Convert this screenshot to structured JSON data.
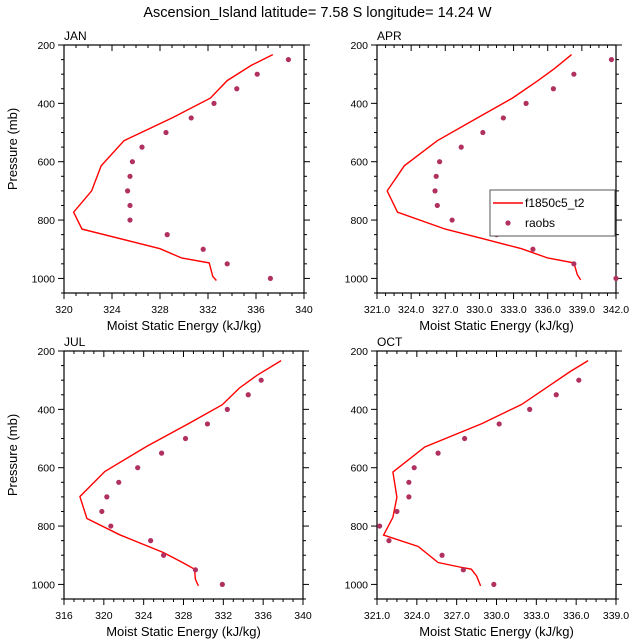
{
  "chart_data": {
    "title": "Ascension_Island  latitude= 7.58 S longitude= 14.24 W",
    "type": "line",
    "legend": {
      "placement": "inside-right (APR panel)",
      "entries": [
        {
          "name": "f1850c5_t2",
          "style": "line",
          "color": "#ff0000"
        },
        {
          "name": "raobs",
          "style": "marker",
          "color": "#b03060"
        }
      ]
    },
    "panels": [
      {
        "label": "JAN",
        "xlabel": "Moist Static Energy (kJ/kg)",
        "ylabel": "Pressure (mb)",
        "xlim": [
          320,
          340
        ],
        "xticks": [
          320,
          324,
          328,
          332,
          336,
          340
        ],
        "xtick_labels": [
          "320",
          "324",
          "328",
          "332",
          "336",
          "340"
        ],
        "ylim": [
          200,
          1050
        ],
        "yticks": [
          200,
          400,
          600,
          800,
          1000
        ],
        "ytick_labels": [
          "200",
          "400",
          "600",
          "800",
          "1000"
        ],
        "model": {
          "name": "f1850c5_t2",
          "mse": [
            337.4,
            335.6,
            333.6,
            332.2,
            329.1,
            325.0,
            323.1,
            322.3,
            320.8,
            321.5,
            328.0,
            329.8,
            332.1,
            332.4,
            332.7
          ],
          "pressure": [
            233,
            270,
            322,
            382,
            448,
            528,
            614,
            700,
            773,
            831,
            898,
            930,
            947,
            993,
            1007
          ]
        },
        "obs": {
          "name": "raobs",
          "mse": [
            338.7,
            336.1,
            334.4,
            332.5,
            330.6,
            328.5,
            326.5,
            325.7,
            325.5,
            325.3,
            325.5,
            325.5,
            328.6,
            331.6,
            333.6,
            337.2
          ],
          "pressure": [
            250,
            300,
            350,
            400,
            450,
            500,
            550,
            600,
            650,
            700,
            750,
            800,
            850,
            900,
            950,
            1000
          ]
        }
      },
      {
        "label": "APR",
        "xlabel": "Moist Static Energy (kJ/kg)",
        "ylabel": "",
        "xlim": [
          321,
          342
        ],
        "xticks": [
          321,
          324,
          327,
          330,
          333,
          336,
          339,
          342
        ],
        "xtick_labels": [
          "321.0",
          "324.0",
          "327.0",
          "330.0",
          "333.0",
          "336.0",
          "339.0",
          "342.0"
        ],
        "ylim": [
          200,
          1050
        ],
        "yticks": [
          200,
          400,
          600,
          800,
          1000
        ],
        "ytick_labels": [
          "200",
          "400",
          "600",
          "800",
          "1000"
        ],
        "model": {
          "name": "f1850c5_t2",
          "mse": [
            338.1,
            336.6,
            335.1,
            332.9,
            329.9,
            326.3,
            323.4,
            321.9,
            322.8,
            327.0,
            330.6,
            333.7,
            336.0,
            338.3,
            338.6,
            338.9
          ],
          "pressure": [
            233,
            281,
            323,
            382,
            448,
            528,
            614,
            700,
            773,
            831,
            867,
            898,
            930,
            947,
            987,
            1005
          ]
        },
        "obs": {
          "name": "raobs",
          "mse": [
            341.6,
            338.3,
            336.5,
            334.1,
            332.1,
            330.3,
            328.4,
            326.5,
            326.2,
            326.1,
            326.3,
            327.6,
            331.5,
            334.7,
            338.3,
            342.0
          ],
          "pressure": [
            250,
            300,
            350,
            400,
            450,
            500,
            550,
            600,
            650,
            700,
            750,
            800,
            850,
            900,
            950,
            1000
          ]
        }
      },
      {
        "label": "JUL",
        "xlabel": "Moist Static Energy (kJ/kg)",
        "ylabel": "Pressure (mb)",
        "xlim": [
          316,
          340
        ],
        "xticks": [
          316,
          320,
          324,
          328,
          332,
          336,
          340
        ],
        "xtick_labels": [
          "316",
          "320",
          "324",
          "328",
          "332",
          "336",
          "340"
        ],
        "ylim": [
          200,
          1050
        ],
        "yticks": [
          200,
          400,
          600,
          800,
          1000
        ],
        "ytick_labels": [
          "200",
          "400",
          "600",
          "800",
          "1000"
        ],
        "model": {
          "name": "f1850c5_t2",
          "mse": [
            337.8,
            335.4,
            333.6,
            331.9,
            328.6,
            324.3,
            320.1,
            317.6,
            318.3,
            321.6,
            326.0,
            327.9,
            329.1,
            329.2,
            329.5
          ],
          "pressure": [
            233,
            283,
            327,
            384,
            447,
            527,
            613,
            699,
            774,
            830,
            891,
            925,
            948,
            982,
            1005
          ]
        },
        "obs": {
          "name": "raobs",
          "mse": [
            335.8,
            334.5,
            332.4,
            330.4,
            328.2,
            325.8,
            323.4,
            321.5,
            320.3,
            319.8,
            320.7,
            324.7,
            326.0,
            329.2,
            331.9
          ],
          "pressure": [
            300,
            350,
            400,
            450,
            500,
            550,
            600,
            650,
            700,
            750,
            800,
            850,
            900,
            950,
            1000
          ]
        }
      },
      {
        "label": "OCT",
        "xlabel": "Moist Static Energy (kJ/kg)",
        "ylabel": "",
        "xlim": [
          321,
          339
        ],
        "xticks": [
          321,
          324,
          327,
          330,
          333,
          336,
          339
        ],
        "xtick_labels": [
          "321.0",
          "324.0",
          "327.0",
          "330.0",
          "333.0",
          "336.0",
          "339.0"
        ],
        "ylim": [
          200,
          1050
        ],
        "yticks": [
          200,
          400,
          600,
          800,
          1000
        ],
        "ytick_labels": [
          "200",
          "400",
          "600",
          "800",
          "1000"
        ],
        "model": {
          "name": "f1850c5_t2",
          "mse": [
            336.9,
            335.5,
            334.2,
            331.9,
            328.9,
            324.6,
            322.2,
            322.5,
            322.2,
            321.5,
            324.1,
            325.6,
            327.4,
            328.1,
            328.5,
            328.8
          ],
          "pressure": [
            233,
            272,
            312,
            383,
            449,
            529,
            615,
            701,
            770,
            831,
            870,
            925,
            942,
            948,
            971,
            1005
          ]
        },
        "obs": {
          "name": "raobs",
          "mse": [
            336.2,
            334.5,
            332.5,
            330.2,
            327.6,
            325.6,
            323.8,
            323.4,
            323.4,
            322.5,
            321.2,
            321.9,
            325.9,
            327.5,
            329.8
          ],
          "pressure": [
            300,
            350,
            400,
            450,
            500,
            550,
            600,
            650,
            700,
            750,
            800,
            850,
            900,
            950,
            1000
          ]
        }
      }
    ],
    "grid": false,
    "colors": {
      "model_line": "#ff0000",
      "obs_marker": "#b03060",
      "axes": "#000000",
      "legend_border": "#555555"
    }
  }
}
